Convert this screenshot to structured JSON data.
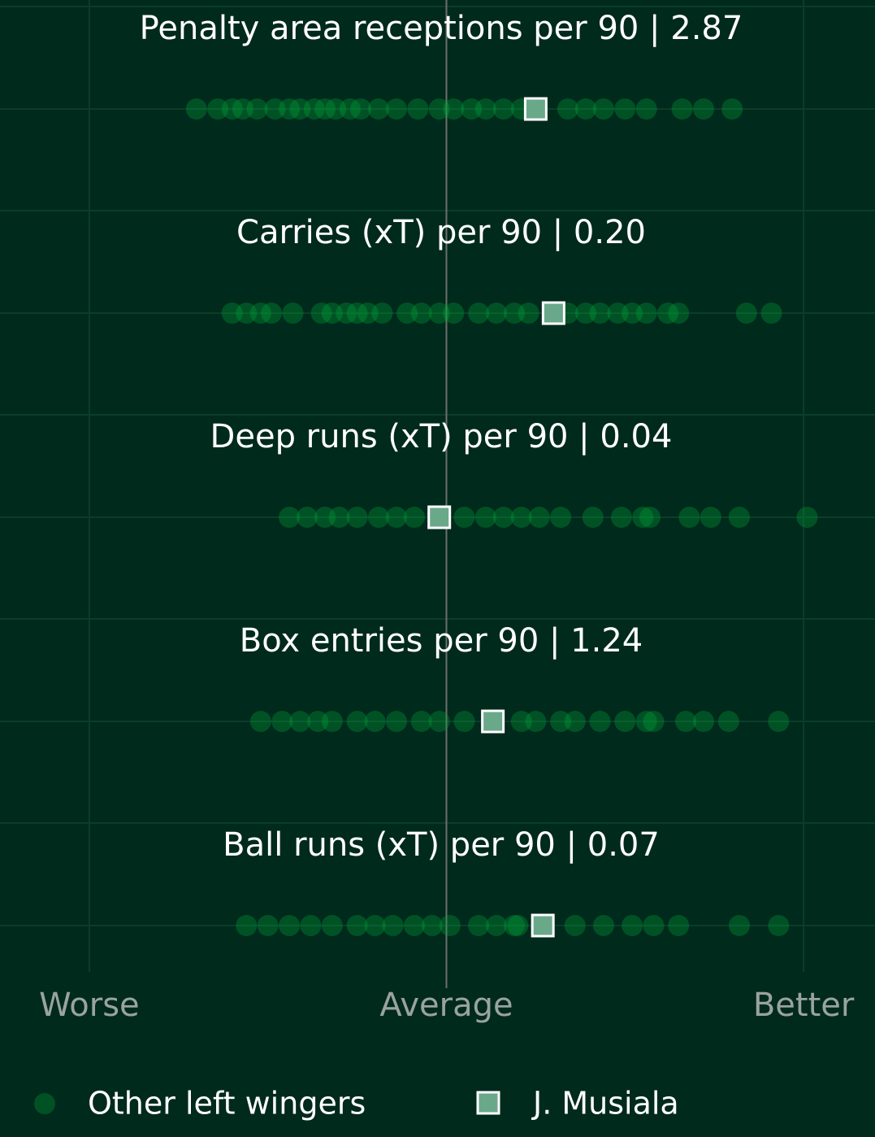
{
  "chart_data": {
    "type": "strip",
    "categories": [
      "Penalty area receptions per 90 | 2.87",
      "Carries (xT) per 90 | 0.20",
      "Deep runs (xT) per 90 | 0.04",
      "Box entries per 90 | 1.24",
      "Ball runs (xT) per 90 | 0.07"
    ],
    "xlim": [
      -1.25,
      1.2
    ],
    "xticks": [
      {
        "value": -1,
        "label": "Worse"
      },
      {
        "value": 0,
        "label": "Average"
      },
      {
        "value": 1,
        "label": "Better"
      }
    ],
    "series": [
      {
        "name": "Other left wingers",
        "color": "#00a838",
        "values": [
          [
            -0.7,
            -0.64,
            -0.6,
            -0.57,
            -0.53,
            -0.48,
            -0.44,
            -0.41,
            -0.37,
            -0.34,
            -0.31,
            -0.27,
            -0.24,
            -0.19,
            -0.14,
            -0.08,
            -0.02,
            0.02,
            0.07,
            0.11,
            0.16,
            0.21,
            0.34,
            0.39,
            0.44,
            0.5,
            0.56,
            0.66,
            0.72,
            0.8
          ],
          [
            -0.6,
            -0.56,
            -0.52,
            -0.49,
            -0.43,
            -0.35,
            -0.32,
            -0.28,
            -0.25,
            -0.22,
            -0.18,
            -0.11,
            -0.07,
            -0.02,
            0.02,
            0.09,
            0.14,
            0.19,
            0.23,
            0.34,
            0.39,
            0.43,
            0.48,
            0.52,
            0.56,
            0.62,
            0.65,
            0.84,
            0.91
          ],
          [
            -0.44,
            -0.39,
            -0.34,
            -0.3,
            -0.25,
            -0.19,
            -0.14,
            -0.09,
            0.05,
            0.11,
            0.16,
            0.21,
            0.26,
            0.32,
            0.41,
            0.49,
            0.55,
            0.57,
            0.68,
            0.74,
            0.82,
            1.01
          ],
          [
            -0.52,
            -0.46,
            -0.41,
            -0.36,
            -0.32,
            -0.25,
            -0.2,
            -0.14,
            -0.07,
            -0.02,
            0.05,
            0.21,
            0.25,
            0.32,
            0.36,
            0.43,
            0.5,
            0.56,
            0.58,
            0.67,
            0.72,
            0.79,
            0.93
          ],
          [
            -0.56,
            -0.5,
            -0.44,
            -0.38,
            -0.32,
            -0.25,
            -0.2,
            -0.15,
            -0.09,
            -0.04,
            0.01,
            0.09,
            0.14,
            0.19,
            0.2,
            0.36,
            0.44,
            0.52,
            0.58,
            0.65,
            0.82,
            0.93
          ]
        ]
      },
      {
        "name": "J. Musiala",
        "color": "#6aa88a",
        "values": [
          0.25,
          0.3,
          -0.02,
          0.13,
          0.27
        ]
      }
    ]
  }
}
